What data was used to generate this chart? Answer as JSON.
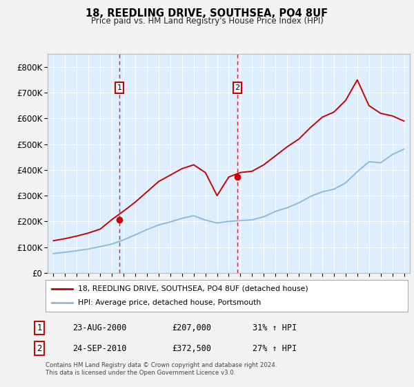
{
  "title": "18, REEDLING DRIVE, SOUTHSEA, PO4 8UF",
  "subtitle": "Price paid vs. HM Land Registry's House Price Index (HPI)",
  "fig_bg_color": "#f2f2f2",
  "plot_bg_color": "#ddeeff",
  "grid_color": "#ffffff",
  "red_line_color": "#cc0000",
  "blue_line_color": "#88bbdd",
  "marker_color": "#cc0000",
  "dashed_line_color": "#cc0000",
  "years": [
    1995,
    1996,
    1997,
    1998,
    1999,
    2000,
    2001,
    2002,
    2003,
    2004,
    2005,
    2006,
    2007,
    2008,
    2009,
    2010,
    2011,
    2012,
    2013,
    2014,
    2015,
    2016,
    2017,
    2018,
    2019,
    2020,
    2021,
    2022,
    2023,
    2024,
    2025
  ],
  "red_line": [
    125000,
    133000,
    143000,
    155000,
    170000,
    207000,
    240000,
    275000,
    315000,
    355000,
    380000,
    405000,
    420000,
    390000,
    300000,
    372500,
    390000,
    395000,
    420000,
    455000,
    490000,
    520000,
    565000,
    605000,
    625000,
    670000,
    750000,
    650000,
    620000,
    610000,
    590000
  ],
  "blue_line": [
    75000,
    80000,
    86000,
    93000,
    102000,
    112000,
    128000,
    148000,
    168000,
    186000,
    198000,
    212000,
    222000,
    205000,
    194000,
    200000,
    203000,
    206000,
    218000,
    239000,
    253000,
    272000,
    297000,
    315000,
    325000,
    350000,
    393000,
    432000,
    428000,
    460000,
    481000
  ],
  "sale1_x": 2000.65,
  "sale1_y": 207000,
  "sale2_x": 2010.73,
  "sale2_y": 372500,
  "ylim": [
    0,
    850000
  ],
  "xlim": [
    1994.5,
    2025.5
  ],
  "yticks": [
    0,
    100000,
    200000,
    300000,
    400000,
    500000,
    600000,
    700000,
    800000
  ],
  "xticks": [
    1995,
    1996,
    1997,
    1998,
    1999,
    2000,
    2001,
    2002,
    2003,
    2004,
    2005,
    2006,
    2007,
    2008,
    2009,
    2010,
    2011,
    2012,
    2013,
    2014,
    2015,
    2016,
    2017,
    2018,
    2019,
    2020,
    2021,
    2022,
    2023,
    2024,
    2025
  ],
  "sale1_date": "23-AUG-2000",
  "sale1_price": "£207,000",
  "sale1_pct": "31% ↑ HPI",
  "sale2_date": "24-SEP-2010",
  "sale2_price": "£372,500",
  "sale2_pct": "27% ↑ HPI",
  "legend_line1": "18, REEDLING DRIVE, SOUTHSEA, PO4 8UF (detached house)",
  "legend_line2": "HPI: Average price, detached house, Portsmouth",
  "footnote1": "Contains HM Land Registry data © Crown copyright and database right 2024.",
  "footnote2": "This data is licensed under the Open Government Licence v3.0."
}
